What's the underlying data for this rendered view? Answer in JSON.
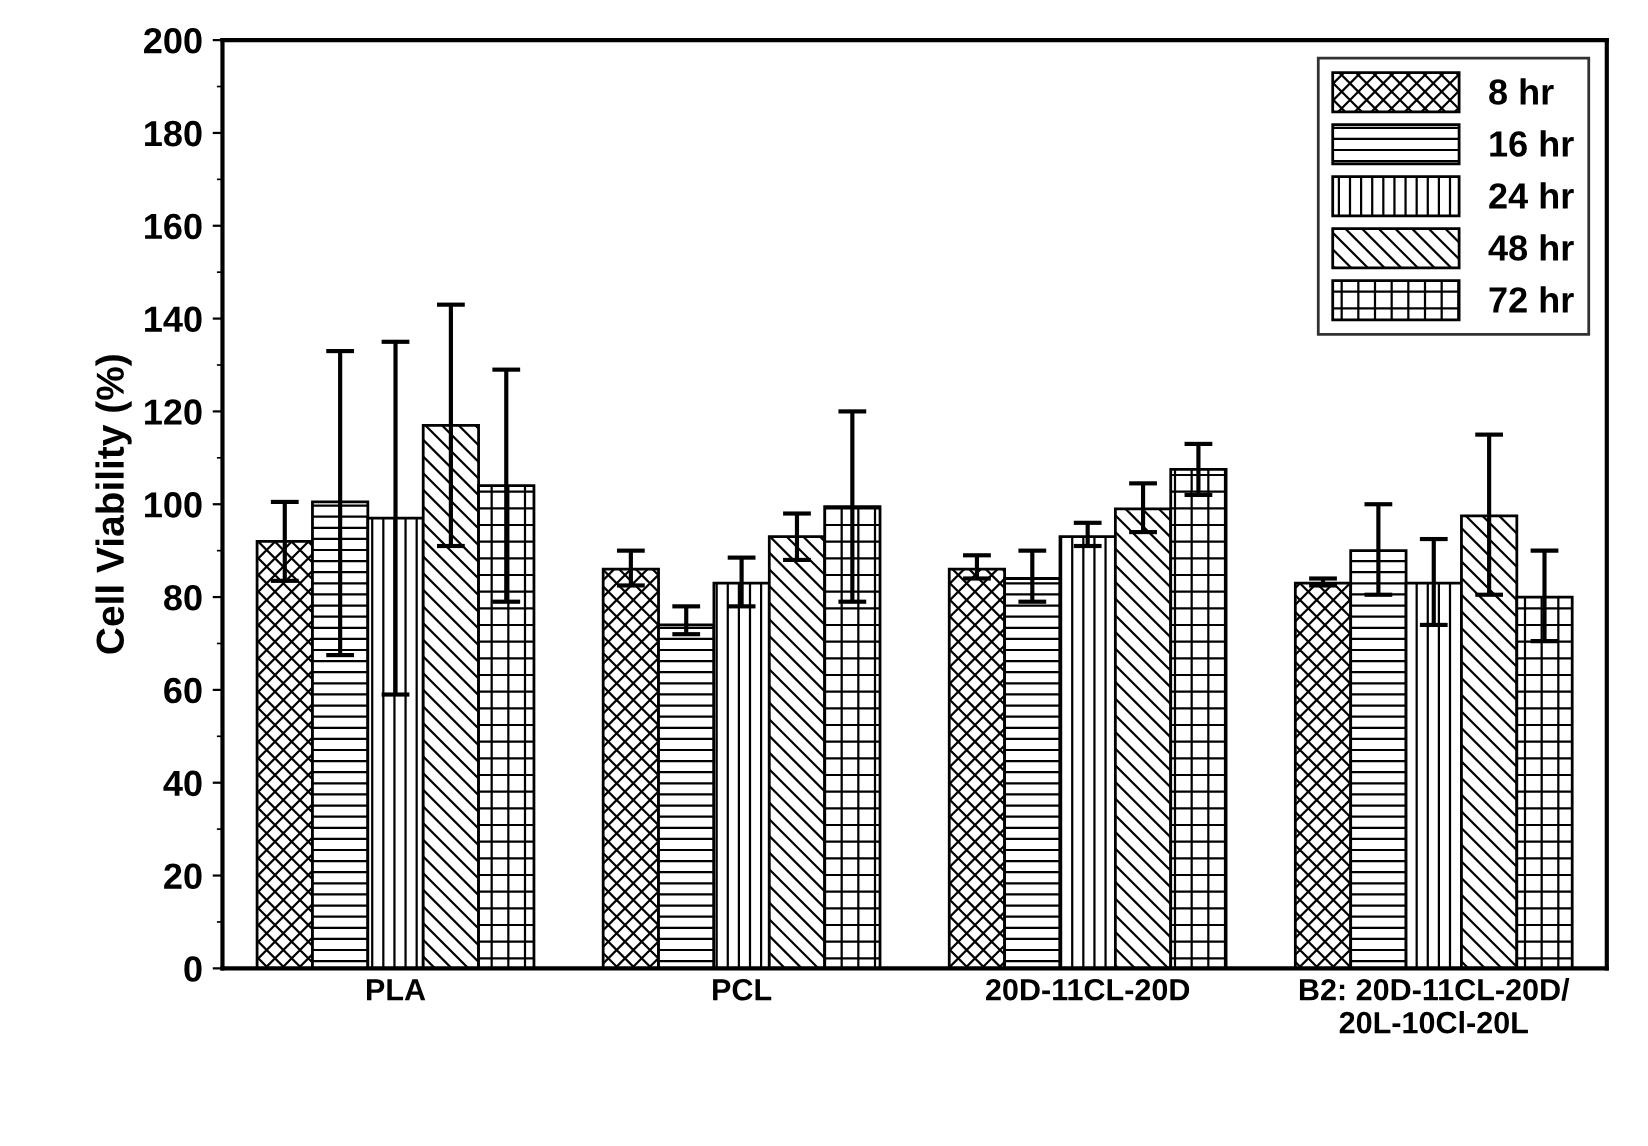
{
  "chart_data": {
    "type": "bar",
    "ylabel": "Cell Viability (%)",
    "categories": [
      "PLA",
      "PCL",
      "20D-11CL-20D",
      "B2: 20D-11CL-20D/\n20L-10Cl-20L"
    ],
    "series": [
      {
        "name": "8 hr",
        "color": "#000000",
        "values": [
          92,
          86,
          86,
          83
        ],
        "errors": [
          [
            83.5,
            100.5
          ],
          [
            82.5,
            90
          ],
          [
            84,
            89
          ],
          [
            82.5,
            84
          ]
        ]
      },
      {
        "name": "16 hr",
        "color": "#000000",
        "values": [
          100.5,
          74,
          84,
          90
        ],
        "errors": [
          [
            67.5,
            133
          ],
          [
            72,
            78
          ],
          [
            79,
            90
          ],
          [
            80.5,
            100
          ]
        ]
      },
      {
        "name": "24 hr",
        "color": "#000000",
        "values": [
          97,
          83,
          93,
          83
        ],
        "errors": [
          [
            59,
            135
          ],
          [
            78,
            88.5
          ],
          [
            91,
            96
          ],
          [
            74,
            92.5
          ]
        ]
      },
      {
        "name": "48 hr",
        "color": "#000000",
        "values": [
          117,
          93,
          99,
          97.5
        ],
        "errors": [
          [
            91,
            143
          ],
          [
            88,
            98
          ],
          [
            94,
            104.5
          ],
          [
            80.5,
            115
          ]
        ]
      },
      {
        "name": "72 hr",
        "color": "#000000",
        "values": [
          104,
          99.5,
          107.5,
          80
        ],
        "errors": [
          [
            79,
            129
          ],
          [
            79,
            120
          ],
          [
            102,
            113
          ],
          [
            70.5,
            90
          ]
        ]
      }
    ],
    "ylim": [
      0,
      200
    ],
    "yticks": [
      0,
      20,
      40,
      60,
      80,
      100,
      120,
      140,
      160,
      180,
      200
    ],
    "grid": false,
    "legend": "top right"
  }
}
